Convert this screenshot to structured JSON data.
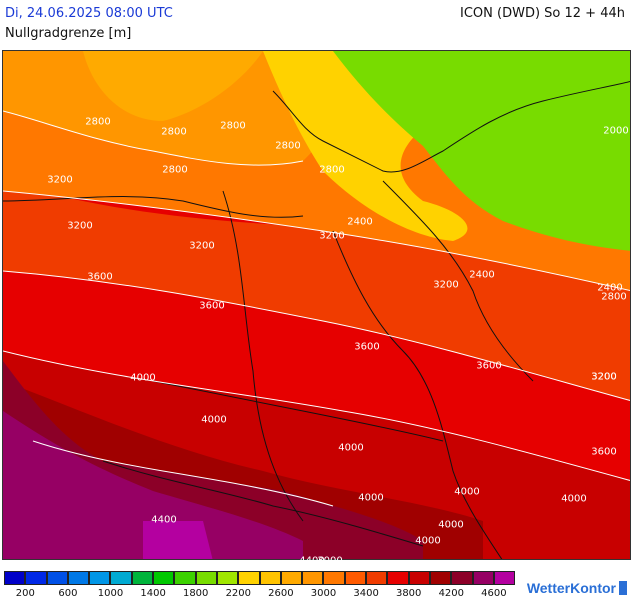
{
  "header": {
    "datetime": "Di, 24.06.2025 08:00 UTC",
    "parameter": "Nullgradgrenze [m]",
    "model_run": "ICON (DWD) So 12 + 44h"
  },
  "map": {
    "isoline_labels": [
      "2800",
      "2800",
      "2800",
      "2800",
      "3200",
      "2800",
      "3200",
      "2000",
      "2800",
      "2400",
      "3200",
      "3200",
      "2400",
      "3200",
      "3600",
      "3200",
      "3600",
      "2400",
      "2800",
      "3600",
      "3600",
      "3200",
      "4000",
      "4000",
      "4000",
      "4000",
      "4000",
      "4000",
      "4000",
      "3600",
      "4000",
      "4400",
      "4400",
      "3000",
      "4000",
      "4400",
      "4000"
    ]
  },
  "legend": {
    "colors": [
      "#0000c8",
      "#0028e6",
      "#0050e6",
      "#0078e6",
      "#0096e6",
      "#00aad2",
      "#00b43c",
      "#00c800",
      "#3cd200",
      "#78dc00",
      "#a0e600",
      "#ffd200",
      "#ffc300",
      "#ffaa00",
      "#ff9600",
      "#ff7800",
      "#ff5a00",
      "#f03c00",
      "#e60000",
      "#c80000",
      "#a00000",
      "#8c0028",
      "#960064",
      "#b400a0"
    ],
    "labels": [
      "200",
      "600",
      "1000",
      "1400",
      "1800",
      "2200",
      "2600",
      "3000",
      "3400",
      "3800",
      "4200",
      "4600"
    ]
  },
  "brand": {
    "name": "WetterKontor"
  }
}
